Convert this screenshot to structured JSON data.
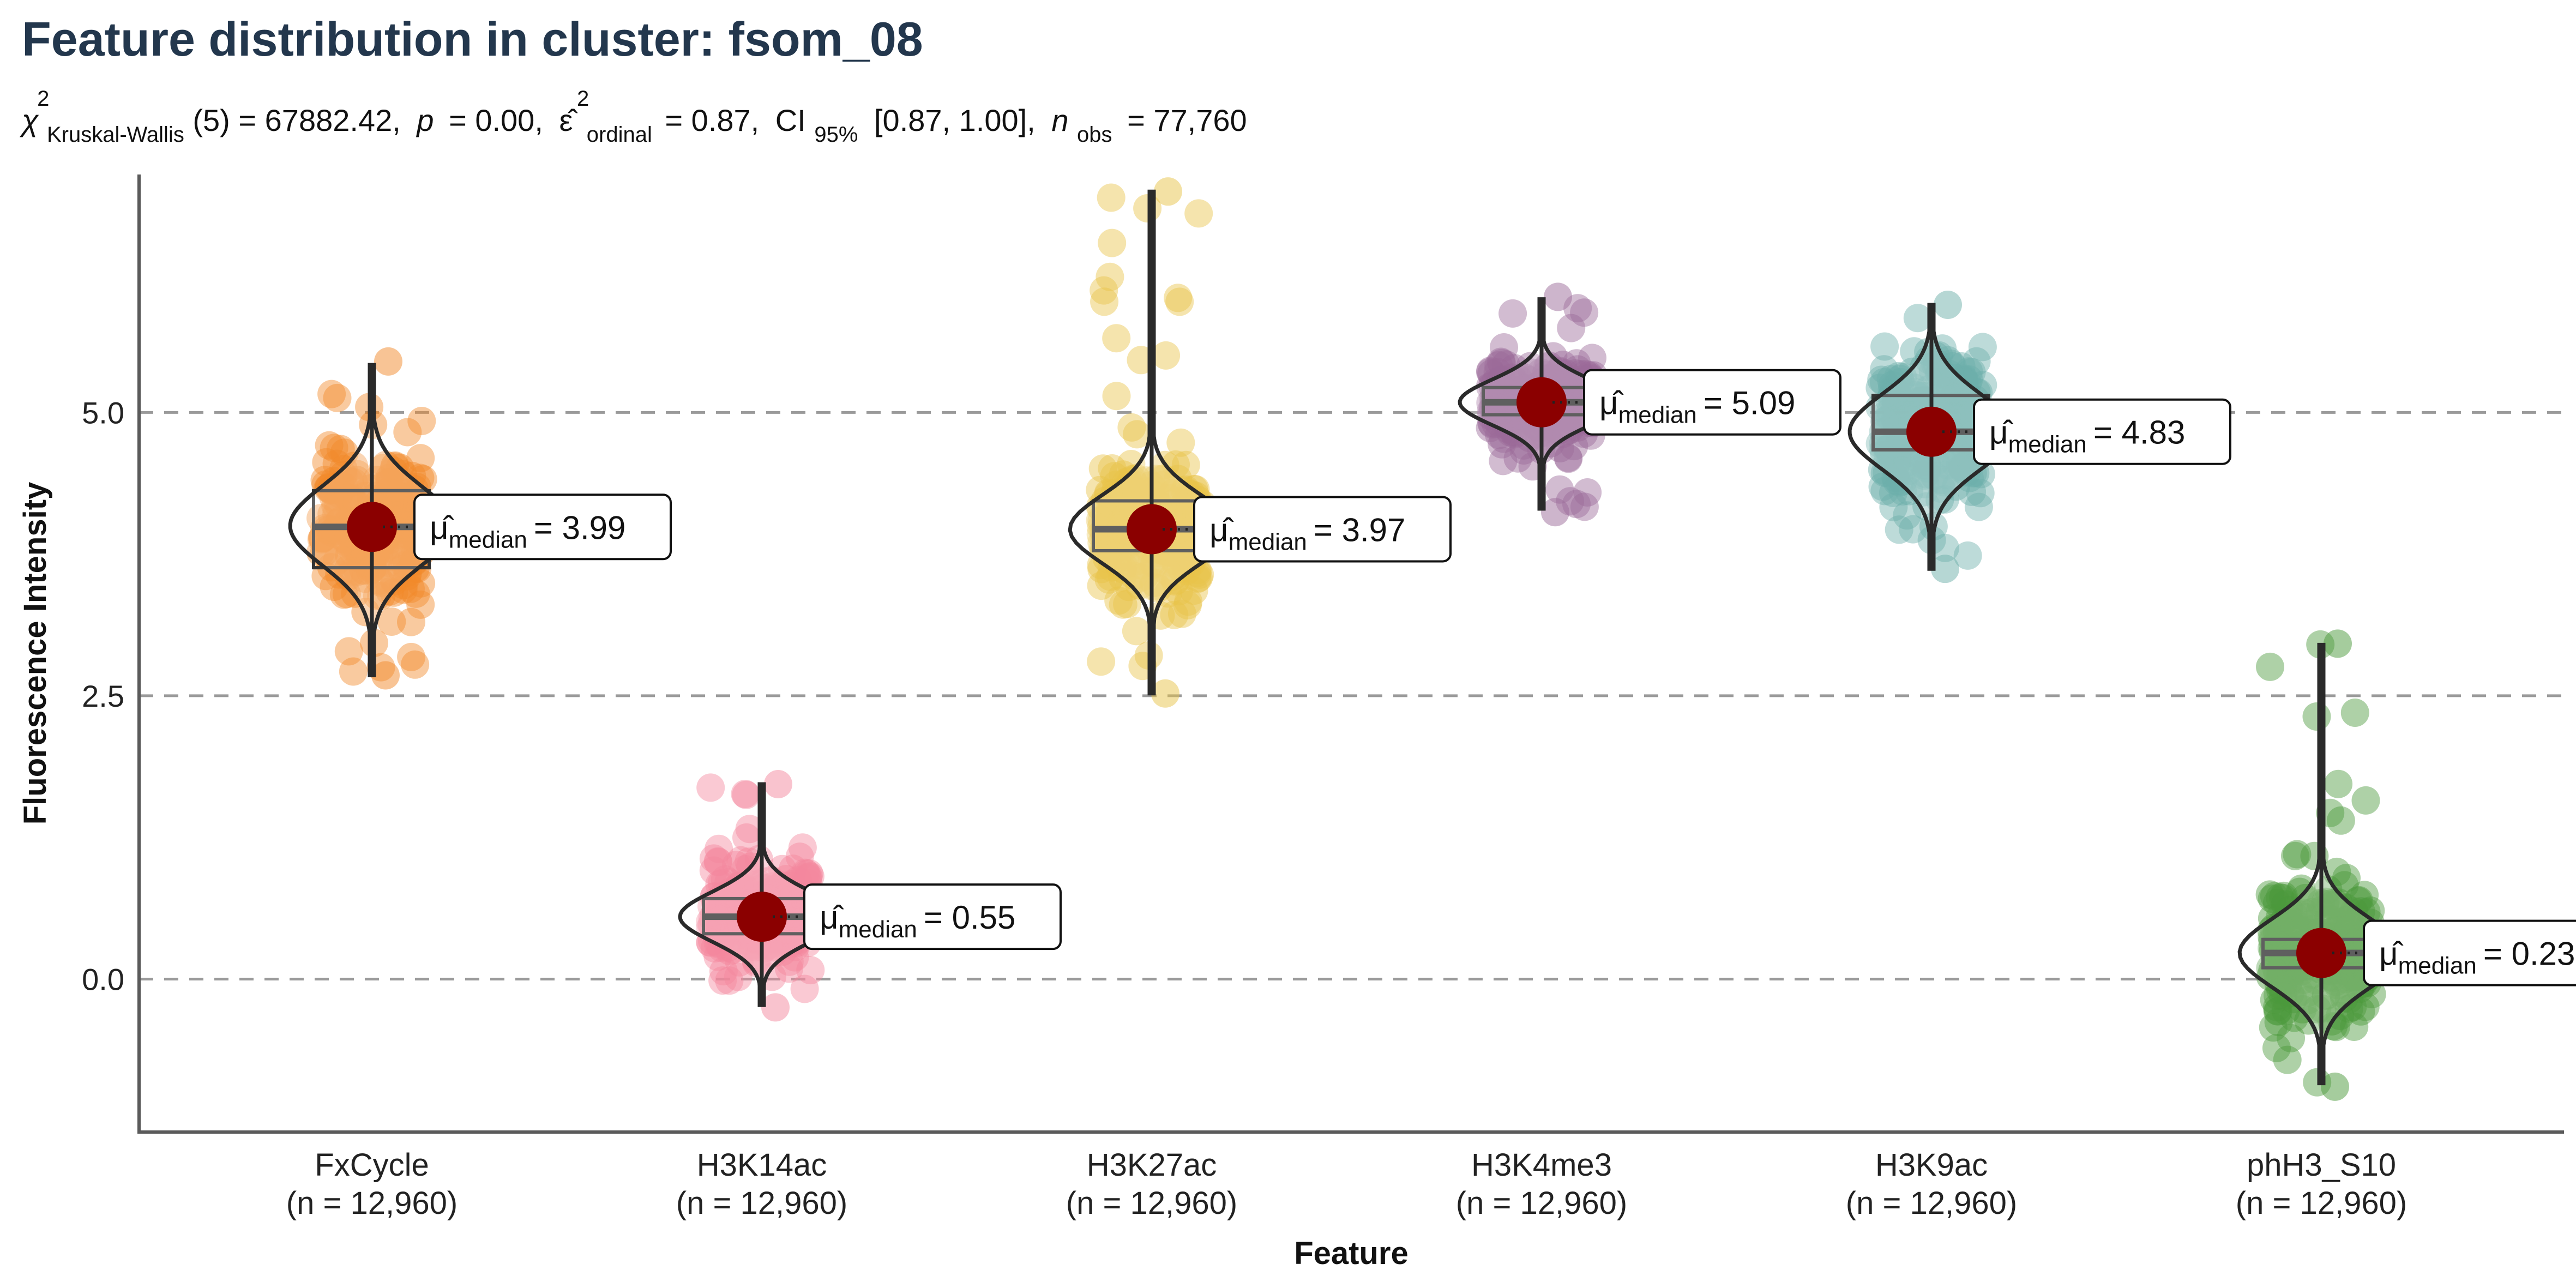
{
  "chart_data": {
    "type": "violin",
    "title": "Feature distribution in cluster: fsom_08",
    "subtitle": {
      "chi": "χ",
      "chi_sup": "2",
      "test_name": "Kruskal-Wallis",
      "test_df": "(5) = 67882.42,",
      "p_symbol": "p",
      "p_value": "= 0.00,",
      "eps": "ε̂",
      "eps_sup": "2",
      "eps_sub": "ordinal",
      "eps_value": "= 0.87,",
      "ci_label": "CI",
      "ci_sub": "95%",
      "ci_value": "[0.87, 1.00],",
      "n_symbol": "n",
      "n_sub": "obs",
      "n_value": "= 77,760"
    },
    "xlabel": "Feature",
    "ylabel": "Fluorescence Intensity",
    "ylim": [
      -1.35,
      7.1
    ],
    "yticks": [
      {
        "value": 0.0,
        "label": "0.0"
      },
      {
        "value": 2.5,
        "label": "2.5"
      },
      {
        "value": 5.0,
        "label": "5.0"
      }
    ],
    "grid": "horizontal dashed at major ticks",
    "mu_symbol": "μ̂",
    "mu_sub": "median",
    "categories": [
      {
        "name": "FxCycle",
        "n_label": "(n = 12,960)",
        "median": 3.99,
        "median_label": "= 3.99",
        "color": "#F28A2B",
        "q1": 3.63,
        "q3": 4.31,
        "wlo": 2.68,
        "whi": 5.42,
        "pmin": 2.68,
        "pmax": 5.45,
        "kde_peak": 4.0,
        "kde_spread": 0.35
      },
      {
        "name": "H3K14ac",
        "n_label": "(n = 12,960)",
        "median": 0.55,
        "median_label": "= 0.55",
        "color": "#F4889E",
        "q1": 0.4,
        "q3": 0.71,
        "wlo": -0.23,
        "whi": 1.72,
        "pmin": -0.25,
        "pmax": 1.72,
        "kde_peak": 0.55,
        "kde_spread": 0.22
      },
      {
        "name": "H3K27ac",
        "n_label": "(n = 12,960)",
        "median": 3.97,
        "median_label": "= 3.97",
        "color": "#E8C44A",
        "q1": 3.78,
        "q3": 4.22,
        "wlo": 2.52,
        "whi": 6.95,
        "pmin": 2.52,
        "pmax": 6.95,
        "kde_peak": 3.97,
        "kde_spread": 0.3
      },
      {
        "name": "H3K4me3",
        "n_label": "(n = 12,960)",
        "median": 5.09,
        "median_label": "= 5.09",
        "color": "#9B6B9A",
        "q1": 4.98,
        "q3": 5.22,
        "wlo": 4.15,
        "whi": 6.0,
        "pmin": 4.12,
        "pmax": 6.02,
        "kde_peak": 5.09,
        "kde_spread": 0.2
      },
      {
        "name": "H3K9ac",
        "n_label": "(n = 12,960)",
        "median": 4.83,
        "median_label": "= 4.83",
        "color": "#6DAFAA",
        "q1": 4.67,
        "q3": 5.15,
        "wlo": 3.62,
        "whi": 5.95,
        "pmin": 3.62,
        "pmax": 5.95,
        "kde_peak": 4.83,
        "kde_spread": 0.33
      },
      {
        "name": "phH3_S10",
        "n_label": "(n = 12,960)",
        "median": 0.23,
        "median_label": "= 0.23",
        "color": "#4C9A3C",
        "q1": 0.1,
        "q3": 0.35,
        "wlo": -0.92,
        "whi": 2.95,
        "pmin": -0.95,
        "pmax": 2.96,
        "kde_peak": 0.23,
        "kde_spread": 0.3
      }
    ],
    "median_point_color": "#8B0000"
  }
}
